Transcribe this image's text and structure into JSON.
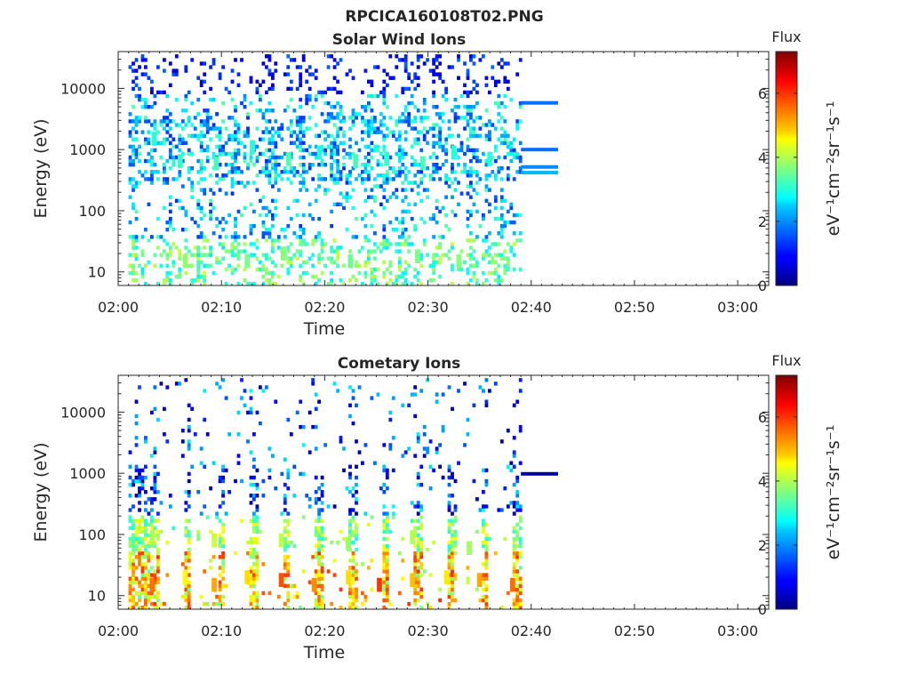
{
  "figure_title": "RPCICA160108T02.PNG",
  "chart_data": [
    {
      "type": "heatmap",
      "title": "Solar Wind Ions",
      "xlabel": "Time",
      "ylabel": "Energy (eV)",
      "x_ticks": [
        "02:00",
        "02:10",
        "02:20",
        "02:30",
        "02:40",
        "02:50",
        "03:00"
      ],
      "x_range": [
        "02:00",
        "03:03"
      ],
      "y_scale": "log",
      "y_ticks": [
        "10",
        "100",
        "1000",
        "10000"
      ],
      "y_range": [
        6,
        40000
      ],
      "data_end": "02:39",
      "colorbar": {
        "title": "Flux",
        "unit": "eV⁻¹cm⁻²sr⁻¹s⁻¹",
        "unit_plain": "eV-1cm-2sr-1s-1",
        "ticks": [
          "0",
          "2",
          "4",
          "6"
        ],
        "range": [
          0,
          7.3
        ],
        "colormap": "jet"
      },
      "bands": [
        {
          "time": [
            "02:39",
            "02:42.6"
          ],
          "energy": 5800,
          "level": 1.7
        },
        {
          "time": [
            "02:39",
            "02:42.6"
          ],
          "energy": 1000,
          "level": 1.7
        },
        {
          "time": [
            "02:39",
            "02:42.6"
          ],
          "energy": 520,
          "level": 1.9
        },
        {
          "time": [
            "02:39",
            "02:42.6"
          ],
          "energy": 420,
          "level": 2.2
        }
      ],
      "hotspots": [
        {
          "time": "02:03.5",
          "energy": 1500,
          "level": 3.0
        },
        {
          "time": "02:06",
          "energy": 650,
          "level": 3.1
        },
        {
          "time": "02:09.5",
          "energy": 600,
          "level": 3.2
        },
        {
          "time": "02:13",
          "energy": 1100,
          "level": 3.0
        },
        {
          "time": "02:16.5",
          "energy": 700,
          "level": 3.3
        },
        {
          "time": "02:19.5",
          "energy": 900,
          "level": 3.0
        },
        {
          "time": "02:23",
          "energy": 650,
          "level": 3.2
        },
        {
          "time": "02:26",
          "energy": 700,
          "level": 3.1
        },
        {
          "time": "02:29.5",
          "energy": 600,
          "level": 3.2
        },
        {
          "time": "02:32.5",
          "energy": 900,
          "level": 3.0
        },
        {
          "time": "02:36",
          "energy": 700,
          "level": 3.0
        },
        {
          "time": "02:06.5",
          "energy": 15,
          "level": 3.8
        },
        {
          "time": "02:12.5",
          "energy": 15,
          "level": 3.6
        },
        {
          "time": "02:16",
          "energy": 20,
          "level": 3.7
        },
        {
          "time": "02:22.5",
          "energy": 15,
          "level": 3.5
        },
        {
          "time": "02:29",
          "energy": 18,
          "level": 3.6
        },
        {
          "time": "02:33",
          "energy": 15,
          "level": 3.7
        }
      ]
    },
    {
      "type": "heatmap",
      "title": "Cometary Ions",
      "xlabel": "Time",
      "ylabel": "Energy (eV)",
      "x_ticks": [
        "02:00",
        "02:10",
        "02:20",
        "02:30",
        "02:40",
        "02:50",
        "03:00"
      ],
      "x_range": [
        "02:00",
        "03:03"
      ],
      "y_scale": "log",
      "y_ticks": [
        "10",
        "100",
        "1000",
        "10000"
      ],
      "y_range": [
        6,
        40000
      ],
      "data_end": "02:39",
      "colorbar": {
        "title": "Flux",
        "unit": "eV⁻¹cm⁻²sr⁻¹s⁻¹",
        "unit_plain": "eV-1cm-2sr-1s-1",
        "ticks": [
          "0",
          "2",
          "4",
          "6"
        ],
        "range": [
          0,
          7.3
        ],
        "colormap": "jet"
      },
      "bands": [
        {
          "time": [
            "02:39",
            "02:42.6"
          ],
          "energy": 980,
          "level": 0.3
        }
      ],
      "hotspots": [
        {
          "time": "02:03.3",
          "energy": 15,
          "level": 5.6
        },
        {
          "time": "02:06.5",
          "energy": 20,
          "level": 4.6
        },
        {
          "time": "02:09.3",
          "energy": 15,
          "level": 5.2
        },
        {
          "time": "02:12.5",
          "energy": 20,
          "level": 4.8
        },
        {
          "time": "02:15.8",
          "energy": 18,
          "level": 5.8
        },
        {
          "time": "02:19",
          "energy": 15,
          "level": 5.4
        },
        {
          "time": "02:22.3",
          "energy": 20,
          "level": 4.8
        },
        {
          "time": "02:25.3",
          "energy": 15,
          "level": 6.0
        },
        {
          "time": "02:28.5",
          "energy": 18,
          "level": 5.0
        },
        {
          "time": "02:31.8",
          "energy": 20,
          "level": 4.7
        },
        {
          "time": "02:35",
          "energy": 18,
          "level": 5.2
        },
        {
          "time": "02:38.2",
          "energy": 15,
          "level": 5.6
        },
        {
          "time": "02:03.3",
          "energy": 90,
          "level": 4.0
        },
        {
          "time": "02:09.3",
          "energy": 80,
          "level": 4.2
        },
        {
          "time": "02:15.8",
          "energy": 80,
          "level": 4.1
        },
        {
          "time": "02:22.3",
          "energy": 70,
          "level": 3.8
        },
        {
          "time": "02:28.5",
          "energy": 90,
          "level": 4.0
        },
        {
          "time": "02:34",
          "energy": 60,
          "level": 3.9
        }
      ]
    }
  ]
}
